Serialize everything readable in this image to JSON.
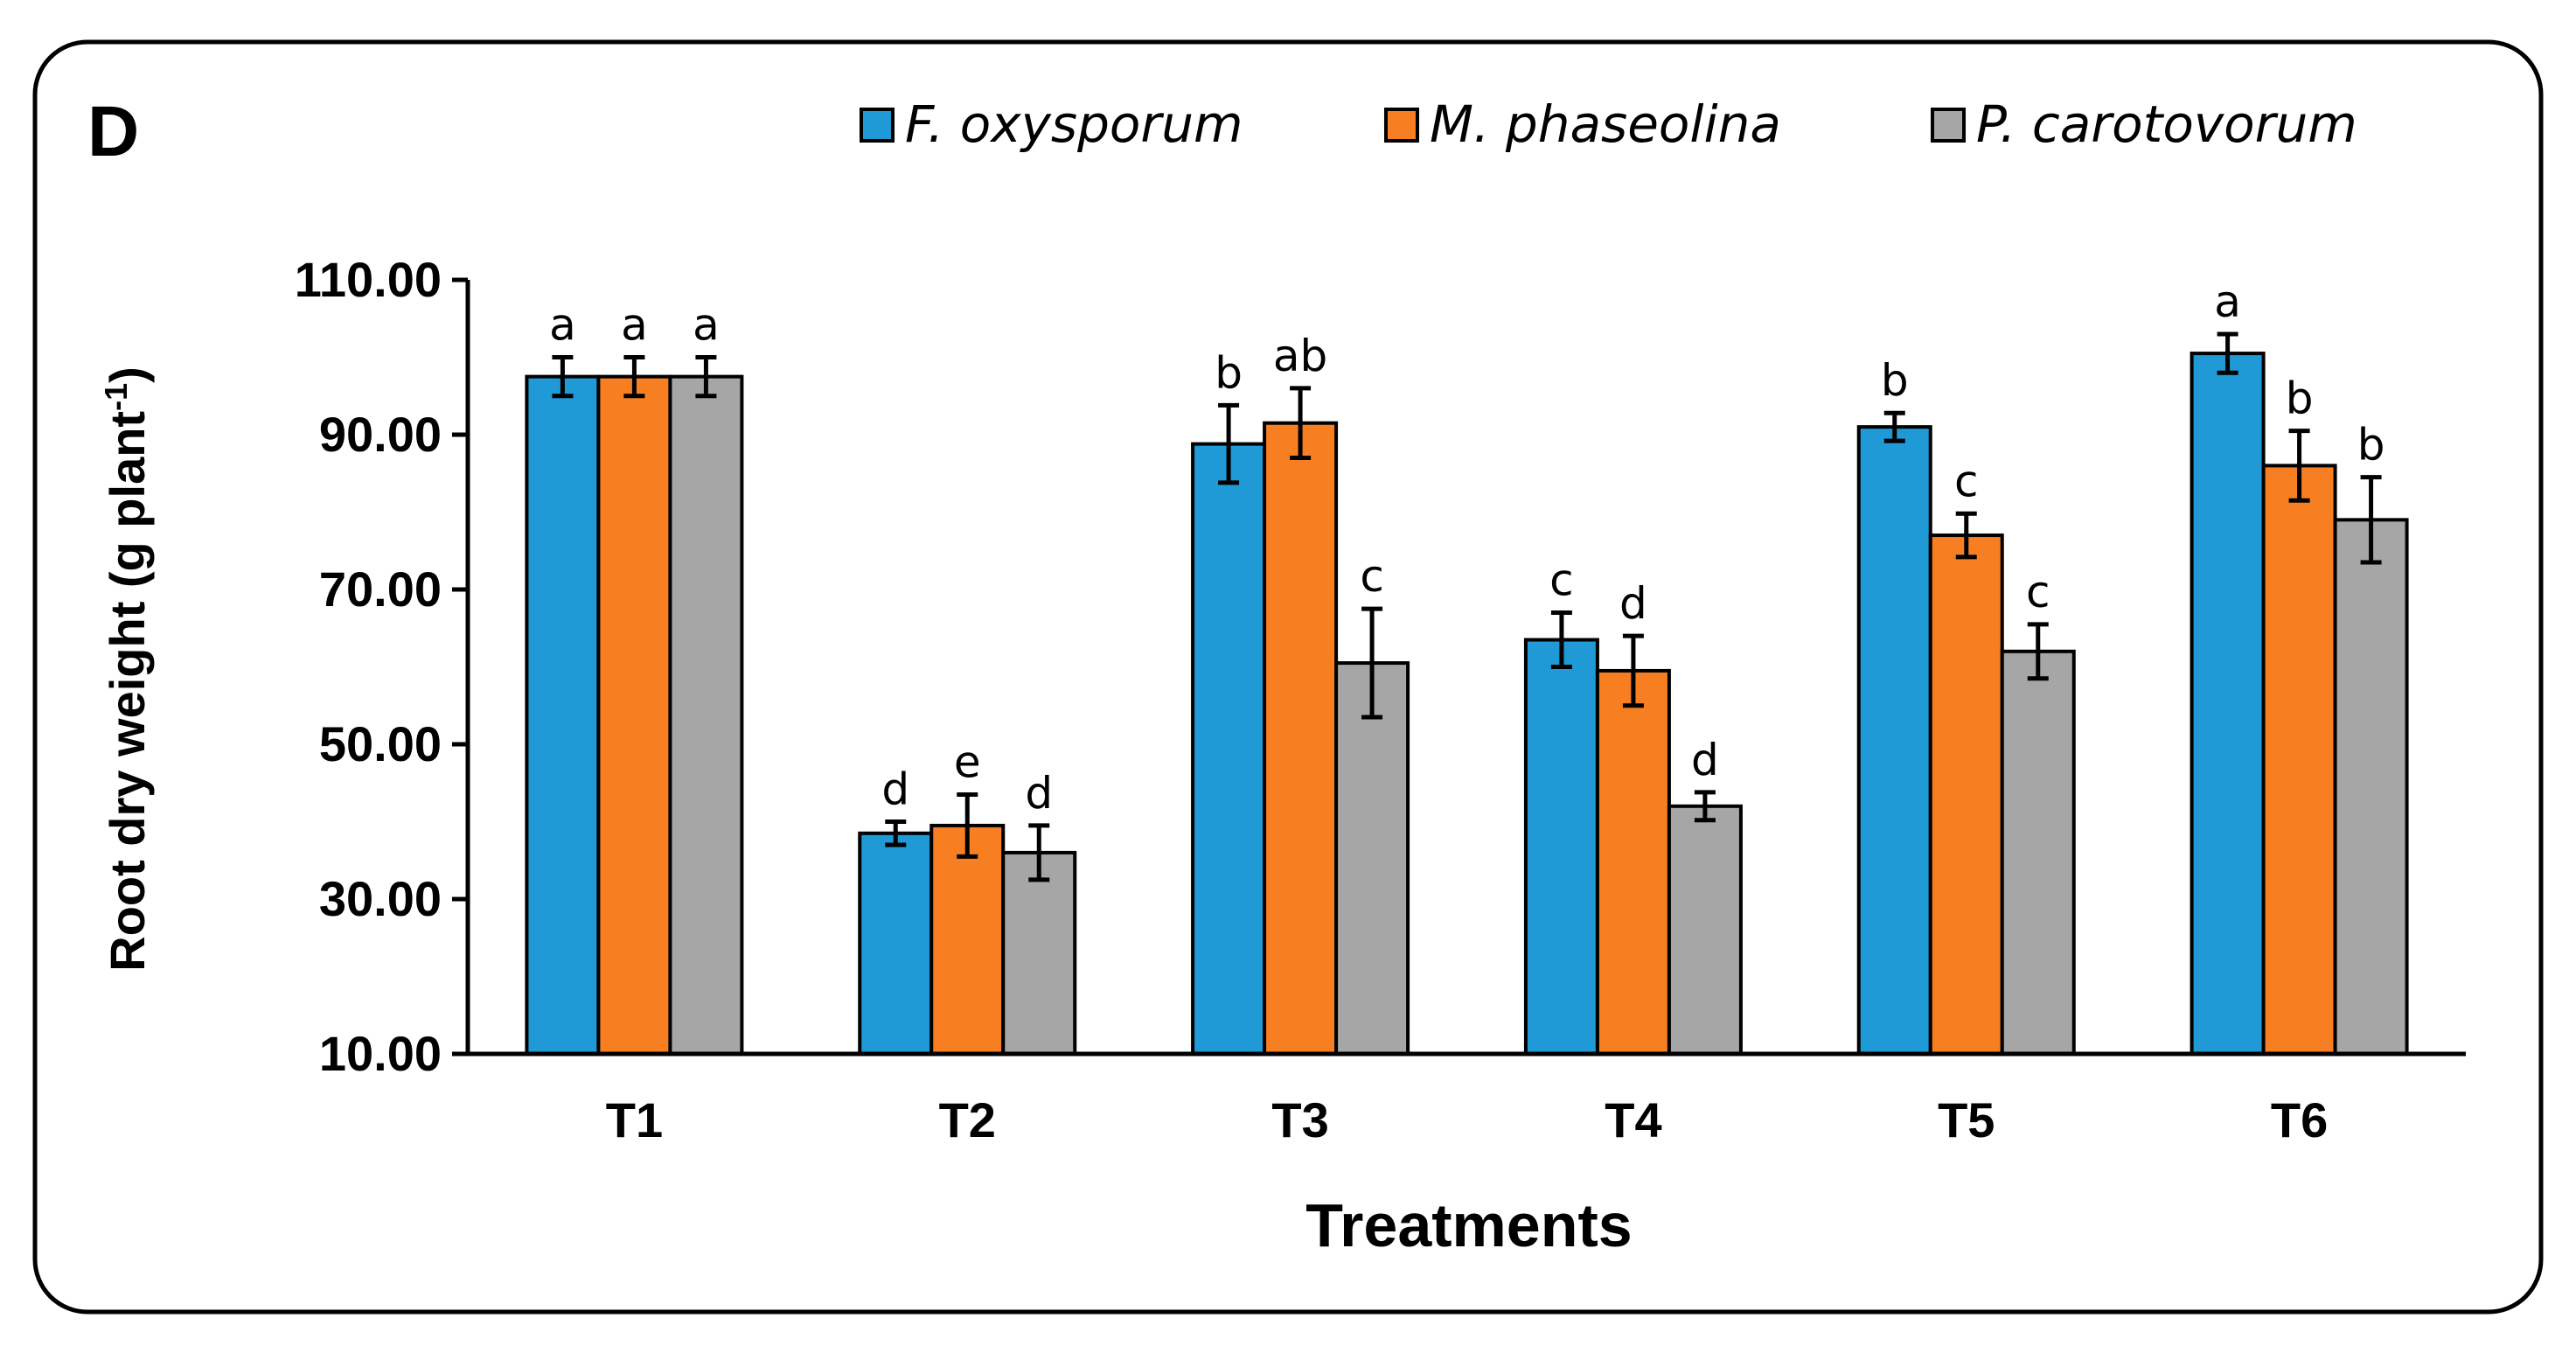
{
  "panel_label": "D",
  "colors": {
    "F. oxysporum": "#1f9ad6",
    "M. phaseolina": "#f77f22",
    "P. carotovorum": "#a6a6a6"
  },
  "chart_data": {
    "type": "bar",
    "title": "",
    "xlabel": "Treatments",
    "ylabel": "Root dry weight (g plant",
    "ylabel_superscript": "-1",
    "ylabel_suffix": ")",
    "ylim": [
      10,
      110
    ],
    "yticks": [
      10,
      30,
      50,
      70,
      90,
      110
    ],
    "ytick_labels": [
      "10.00",
      "30.00",
      "50.00",
      "70.00",
      "90.00",
      "110.00"
    ],
    "categories": [
      "T1",
      "T2",
      "T3",
      "T4",
      "T5",
      "T6"
    ],
    "legend_position": "top-right",
    "series": [
      {
        "name": "F. oxysporum",
        "values": [
          97.5,
          38.5,
          88.8,
          63.5,
          91.0,
          100.5
        ],
        "errors": [
          2.5,
          1.5,
          5.0,
          3.5,
          1.8,
          2.5
        ],
        "labels": [
          "a",
          "d",
          "b",
          "c",
          "b",
          "a"
        ]
      },
      {
        "name": "M. phaseolina",
        "values": [
          97.5,
          39.5,
          91.5,
          59.5,
          77.0,
          86.0
        ],
        "errors": [
          2.5,
          4.0,
          4.5,
          4.5,
          2.8,
          4.5
        ],
        "labels": [
          "a",
          "e",
          "ab",
          "d",
          "c",
          "b"
        ]
      },
      {
        "name": "P. carotovorum",
        "values": [
          97.5,
          36.0,
          60.5,
          42.0,
          62.0,
          79.0
        ],
        "errors": [
          2.5,
          3.5,
          7.0,
          1.8,
          3.5,
          5.5
        ],
        "labels": [
          "a",
          "d",
          "c",
          "d",
          "c",
          "b"
        ]
      }
    ]
  }
}
